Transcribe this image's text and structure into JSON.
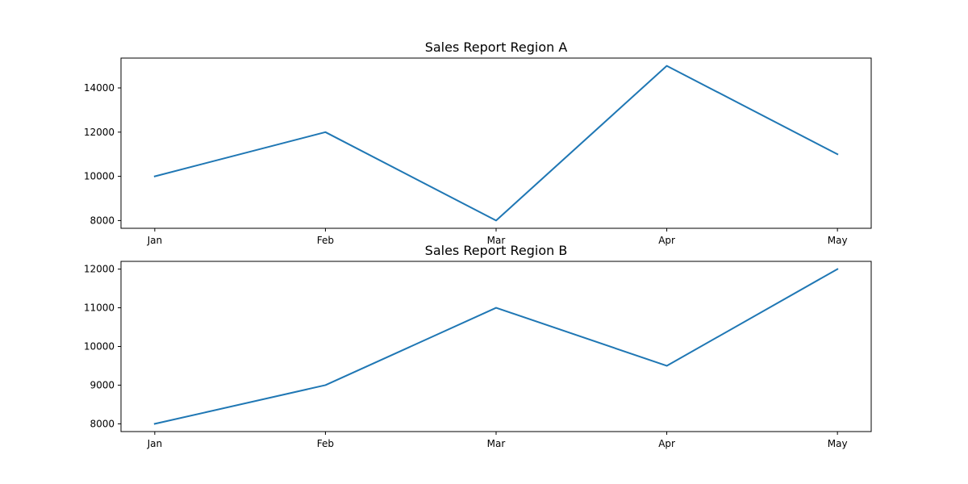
{
  "chart_data": [
    {
      "type": "line",
      "title": "Sales Report Region A",
      "xlabel": "",
      "ylabel": "",
      "categories": [
        "Jan",
        "Feb",
        "Mar",
        "Apr",
        "May"
      ],
      "series": [
        {
          "values": [
            10000,
            12000,
            8000,
            15000,
            11000
          ],
          "color": "#1f77b4"
        }
      ],
      "yticks": [
        8000,
        10000,
        12000,
        14000
      ],
      "ylim": [
        7650,
        15350
      ],
      "grid": false,
      "legend": "none"
    },
    {
      "type": "line",
      "title": "Sales Report Region B",
      "xlabel": "",
      "ylabel": "",
      "categories": [
        "Jan",
        "Feb",
        "Mar",
        "Apr",
        "May"
      ],
      "series": [
        {
          "values": [
            8000,
            9000,
            11000,
            9500,
            12000
          ],
          "color": "#1f77b4"
        }
      ],
      "yticks": [
        8000,
        9000,
        10000,
        11000,
        12000
      ],
      "ylim": [
        7800,
        12200
      ],
      "grid": false,
      "legend": "none"
    }
  ]
}
